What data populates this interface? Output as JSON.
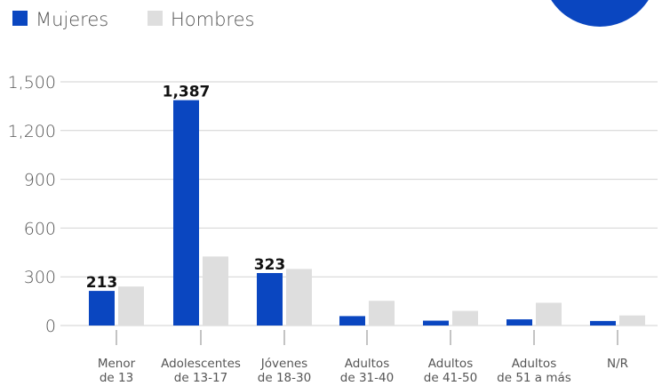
{
  "colors": {
    "mujeres": "#0a46c0",
    "hombres": "#dedede",
    "text": "#555555",
    "grid": "#d2d2d2",
    "data_label": "#111111",
    "corner_shape": "#0a46c0"
  },
  "legend": {
    "mujeres_label": "Mujeres",
    "hombres_label": "Hombres"
  },
  "chart_data": {
    "type": "bar",
    "ylim": [
      0,
      1500
    ],
    "yticks": [
      0,
      300,
      600,
      900,
      1200,
      1500
    ],
    "ytick_labels": [
      "0",
      "300",
      "600",
      "900",
      "1,200",
      "1,500"
    ],
    "grid": true,
    "legend_position": "top-left",
    "categories": [
      [
        "Menor",
        "de 13"
      ],
      [
        "Adolescentes",
        "de 13-17"
      ],
      [
        "Jóvenes",
        "de 18-30"
      ],
      [
        "Adultos",
        "de 31-40"
      ],
      [
        "Adultos",
        "de 41-50"
      ],
      [
        "Adultos",
        "de 51 a más"
      ],
      [
        "N/R"
      ]
    ],
    "series": [
      {
        "name": "Mujeres",
        "values": [
          213,
          1387,
          323,
          58,
          30,
          38,
          28
        ],
        "data_labels": [
          "213",
          "1,387",
          "323",
          "",
          "",
          "",
          ""
        ]
      },
      {
        "name": "Hombres",
        "values": [
          240,
          425,
          348,
          152,
          90,
          140,
          62
        ]
      }
    ]
  }
}
